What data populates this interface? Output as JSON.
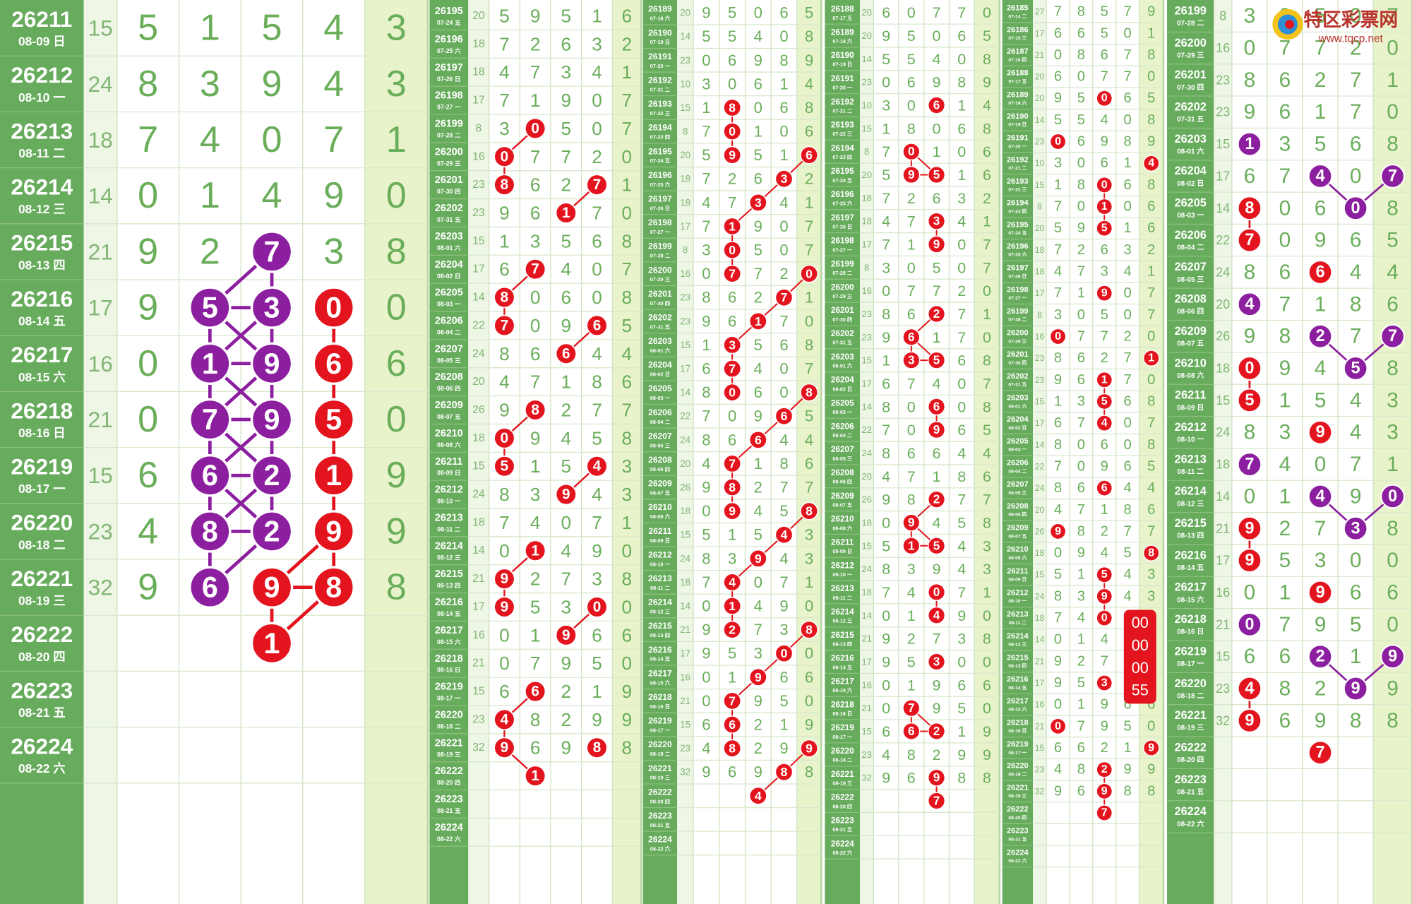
{
  "logo": {
    "title": "特区彩票网",
    "url": "www.tqcp.net"
  },
  "colors": {
    "r": "#e3141d",
    "p": "#8b1f9f"
  },
  "draws": [
    {
      "issue": "26185",
      "date": "07-14 二",
      "sum": 27,
      "digits": [
        7,
        8,
        5,
        7
      ],
      "last": 9
    },
    {
      "issue": "26186",
      "date": "07-15 三",
      "sum": 17,
      "digits": [
        6,
        6,
        5,
        0
      ],
      "last": 1
    },
    {
      "issue": "26187",
      "date": "07-16 四",
      "sum": 21,
      "digits": [
        0,
        8,
        6,
        7
      ],
      "last": 8
    },
    {
      "issue": "26188",
      "date": "07-17 五",
      "sum": 20,
      "digits": [
        6,
        0,
        7,
        7
      ],
      "last": 0
    },
    {
      "issue": "26189",
      "date": "07-18 六",
      "sum": 20,
      "digits": [
        9,
        5,
        0,
        6
      ],
      "last": 5
    },
    {
      "issue": "26190",
      "date": "07-19 日",
      "sum": 14,
      "digits": [
        5,
        5,
        4,
        0
      ],
      "last": 8
    },
    {
      "issue": "26191",
      "date": "07-20 一",
      "sum": 23,
      "digits": [
        0,
        6,
        9,
        8
      ],
      "last": 9
    },
    {
      "issue": "26192",
      "date": "07-21 二",
      "sum": 10,
      "digits": [
        3,
        0,
        6,
        1
      ],
      "last": 4
    },
    {
      "issue": "26193",
      "date": "07-22 三",
      "sum": 15,
      "digits": [
        1,
        8,
        0,
        6
      ],
      "last": 8
    },
    {
      "issue": "26194",
      "date": "07-23 四",
      "sum": 8,
      "digits": [
        7,
        0,
        1,
        0
      ],
      "last": 6
    },
    {
      "issue": "26195",
      "date": "07-24 五",
      "sum": 20,
      "digits": [
        5,
        9,
        5,
        1
      ],
      "last": 6
    },
    {
      "issue": "26196",
      "date": "07-25 六",
      "sum": 18,
      "digits": [
        7,
        2,
        6,
        3
      ],
      "last": 2
    },
    {
      "issue": "26197",
      "date": "07-26 日",
      "sum": 18,
      "digits": [
        4,
        7,
        3,
        4
      ],
      "last": 1
    },
    {
      "issue": "26198",
      "date": "07-27 一",
      "sum": 17,
      "digits": [
        7,
        1,
        9,
        0
      ],
      "last": 7
    },
    {
      "issue": "26199",
      "date": "07-28 二",
      "sum": 8,
      "digits": [
        3,
        0,
        5,
        0
      ],
      "last": 7
    },
    {
      "issue": "26200",
      "date": "07-29 三",
      "sum": 16,
      "digits": [
        0,
        7,
        7,
        2
      ],
      "last": 0
    },
    {
      "issue": "26201",
      "date": "07-30 四",
      "sum": 23,
      "digits": [
        8,
        6,
        2,
        7
      ],
      "last": 1
    },
    {
      "issue": "26202",
      "date": "07-31 五",
      "sum": 23,
      "digits": [
        9,
        6,
        1,
        7
      ],
      "last": 0
    },
    {
      "issue": "26203",
      "date": "08-01 六",
      "sum": 15,
      "digits": [
        1,
        3,
        5,
        6
      ],
      "last": 8
    },
    {
      "issue": "26204",
      "date": "08-02 日",
      "sum": 17,
      "digits": [
        6,
        7,
        4,
        0
      ],
      "last": 7
    },
    {
      "issue": "26205",
      "date": "08-03 一",
      "sum": 14,
      "digits": [
        8,
        0,
        6,
        0
      ],
      "last": 8
    },
    {
      "issue": "26206",
      "date": "08-04 二",
      "sum": 22,
      "digits": [
        7,
        0,
        9,
        6
      ],
      "last": 5
    },
    {
      "issue": "26207",
      "date": "08-05 三",
      "sum": 24,
      "digits": [
        8,
        6,
        6,
        4
      ],
      "last": 4
    },
    {
      "issue": "26208",
      "date": "08-06 四",
      "sum": 20,
      "digits": [
        4,
        7,
        1,
        8
      ],
      "last": 6
    },
    {
      "issue": "26209",
      "date": "08-07 五",
      "sum": 26,
      "digits": [
        9,
        8,
        2,
        7
      ],
      "last": 7
    },
    {
      "issue": "26210",
      "date": "08-08 六",
      "sum": 18,
      "digits": [
        0,
        9,
        4,
        5
      ],
      "last": 8
    },
    {
      "issue": "26211",
      "date": "08-09 日",
      "sum": 15,
      "digits": [
        5,
        1,
        5,
        4
      ],
      "last": 3
    },
    {
      "issue": "26212",
      "date": "08-10 一",
      "sum": 24,
      "digits": [
        8,
        3,
        9,
        4
      ],
      "last": 3
    },
    {
      "issue": "26213",
      "date": "08-11 二",
      "sum": 18,
      "digits": [
        7,
        4,
        0,
        7
      ],
      "last": 1
    },
    {
      "issue": "26214",
      "date": "08-12 三",
      "sum": 14,
      "digits": [
        0,
        1,
        4,
        9
      ],
      "last": 0
    },
    {
      "issue": "26215",
      "date": "08-13 四",
      "sum": 21,
      "digits": [
        9,
        2,
        7,
        3
      ],
      "last": 8
    },
    {
      "issue": "26216",
      "date": "08-14 五",
      "sum": 17,
      "digits": [
        9,
        5,
        3,
        0
      ],
      "last": 0
    },
    {
      "issue": "26217",
      "date": "08-15 六",
      "sum": 16,
      "digits": [
        0,
        1,
        9,
        6
      ],
      "last": 6
    },
    {
      "issue": "26218",
      "date": "08-16 日",
      "sum": 21,
      "digits": [
        0,
        7,
        9,
        5
      ],
      "last": 0
    },
    {
      "issue": "26219",
      "date": "08-17 一",
      "sum": 15,
      "digits": [
        6,
        6,
        2,
        1
      ],
      "last": 9
    },
    {
      "issue": "26220",
      "date": "08-18 二",
      "sum": 23,
      "digits": [
        4,
        8,
        2,
        9
      ],
      "last": 9
    },
    {
      "issue": "26221",
      "date": "08-19 三",
      "sum": 32,
      "digits": [
        9,
        6,
        9,
        8
      ],
      "last": 8
    },
    {
      "issue": "26222",
      "date": "08-20 四"
    },
    {
      "issue": "26223",
      "date": "08-21 五"
    },
    {
      "issue": "26224",
      "date": "08-22 六"
    }
  ],
  "panels": [
    {
      "first_issue": "26211",
      "highlights": [
        [
          "26215",
          2,
          "p"
        ],
        [
          "26216",
          1,
          "p"
        ],
        [
          "26216",
          2,
          "p"
        ],
        [
          "26216",
          3,
          "r"
        ],
        [
          "26217",
          1,
          "p"
        ],
        [
          "26217",
          2,
          "p"
        ],
        [
          "26217",
          3,
          "r"
        ],
        [
          "26218",
          1,
          "p"
        ],
        [
          "26218",
          2,
          "p"
        ],
        [
          "26218",
          3,
          "r"
        ],
        [
          "26219",
          1,
          "p"
        ],
        [
          "26219",
          2,
          "p"
        ],
        [
          "26219",
          3,
          "r"
        ],
        [
          "26220",
          1,
          "p"
        ],
        [
          "26220",
          2,
          "p"
        ],
        [
          "26220",
          3,
          "r"
        ],
        [
          "26221",
          1,
          "p"
        ],
        [
          "26221",
          2,
          "r"
        ],
        [
          "26221",
          3,
          "r"
        ]
      ],
      "predictions": [
        [
          "26222",
          2,
          1,
          "r"
        ]
      ]
    },
    {
      "first_issue": "26195",
      "highlights": [
        [
          "26199",
          1,
          "r"
        ],
        [
          "26200",
          0,
          "r"
        ],
        [
          "26201",
          0,
          "r"
        ],
        [
          "26201",
          3,
          "r"
        ],
        [
          "26202",
          2,
          "r"
        ],
        [
          "26204",
          1,
          "r"
        ],
        [
          "26205",
          0,
          "r"
        ],
        [
          "26206",
          0,
          "r"
        ],
        [
          "26206",
          3,
          "r"
        ],
        [
          "26207",
          2,
          "r"
        ],
        [
          "26209",
          1,
          "r"
        ],
        [
          "26210",
          0,
          "r"
        ],
        [
          "26211",
          0,
          "r"
        ],
        [
          "26211",
          3,
          "r"
        ],
        [
          "26212",
          2,
          "r"
        ],
        [
          "26214",
          1,
          "r"
        ],
        [
          "26215",
          0,
          "r"
        ],
        [
          "26216",
          0,
          "r"
        ],
        [
          "26216",
          3,
          "r"
        ],
        [
          "26217",
          2,
          "r"
        ],
        [
          "26219",
          1,
          "r"
        ],
        [
          "26220",
          0,
          "r"
        ],
        [
          "26221",
          0,
          "r"
        ],
        [
          "26221",
          3,
          "r"
        ]
      ],
      "predictions": [
        [
          "26222",
          1,
          1,
          "r"
        ]
      ]
    },
    {
      "first_issue": "26189",
      "highlights": [
        [
          "26193",
          1,
          "r"
        ],
        [
          "26194",
          1,
          "r"
        ],
        [
          "26195",
          1,
          "r"
        ],
        [
          "26195",
          4,
          "r"
        ],
        [
          "26196",
          3,
          "r"
        ],
        [
          "26197",
          2,
          "r"
        ],
        [
          "26198",
          1,
          "r"
        ],
        [
          "26199",
          1,
          "r"
        ],
        [
          "26200",
          1,
          "r"
        ],
        [
          "26200",
          4,
          "r"
        ],
        [
          "26201",
          3,
          "r"
        ],
        [
          "26202",
          2,
          "r"
        ],
        [
          "26203",
          1,
          "r"
        ],
        [
          "26204",
          1,
          "r"
        ],
        [
          "26205",
          1,
          "r"
        ],
        [
          "26205",
          4,
          "r"
        ],
        [
          "26206",
          3,
          "r"
        ],
        [
          "26207",
          2,
          "r"
        ],
        [
          "26208",
          1,
          "r"
        ],
        [
          "26209",
          1,
          "r"
        ],
        [
          "26210",
          1,
          "r"
        ],
        [
          "26210",
          4,
          "r"
        ],
        [
          "26211",
          3,
          "r"
        ],
        [
          "26212",
          2,
          "r"
        ],
        [
          "26213",
          1,
          "r"
        ],
        [
          "26214",
          1,
          "r"
        ],
        [
          "26215",
          1,
          "r"
        ],
        [
          "26215",
          4,
          "r"
        ],
        [
          "26216",
          3,
          "r"
        ],
        [
          "26217",
          2,
          "r"
        ],
        [
          "26218",
          1,
          "r"
        ],
        [
          "26219",
          1,
          "r"
        ],
        [
          "26220",
          1,
          "r"
        ],
        [
          "26220",
          4,
          "r"
        ],
        [
          "26221",
          3,
          "r"
        ]
      ],
      "predictions": [
        [
          "26222",
          2,
          4,
          "r"
        ]
      ]
    },
    {
      "first_issue": "26188",
      "highlights": [
        [
          "26192",
          2,
          "r"
        ],
        [
          "26194",
          1,
          "r"
        ],
        [
          "26195",
          1,
          "r"
        ],
        [
          "26195",
          2,
          "r"
        ],
        [
          "26197",
          2,
          "r"
        ],
        [
          "26198",
          2,
          "r"
        ],
        [
          "26201",
          2,
          "r"
        ],
        [
          "26202",
          1,
          "r"
        ],
        [
          "26203",
          1,
          "r"
        ],
        [
          "26203",
          2,
          "r"
        ],
        [
          "26205",
          2,
          "r"
        ],
        [
          "26206",
          2,
          "r"
        ],
        [
          "26209",
          2,
          "r"
        ],
        [
          "26210",
          1,
          "r"
        ],
        [
          "26211",
          1,
          "r"
        ],
        [
          "26211",
          2,
          "r"
        ],
        [
          "26213",
          2,
          "r"
        ],
        [
          "26214",
          2,
          "r"
        ],
        [
          "26216",
          2,
          "r"
        ],
        [
          "26218",
          1,
          "r"
        ],
        [
          "26219",
          1,
          "r"
        ],
        [
          "26219",
          2,
          "r"
        ],
        [
          "26221",
          2,
          "r"
        ]
      ],
      "predictions": [
        [
          "26222",
          2,
          7,
          "r"
        ]
      ]
    },
    {
      "first_issue": "26185",
      "highlights": [
        [
          "26189",
          2,
          "r"
        ],
        [
          "26191",
          0,
          "r"
        ],
        [
          "26192",
          4,
          "r"
        ],
        [
          "26193",
          2,
          "r"
        ],
        [
          "26194",
          2,
          "r"
        ],
        [
          "26195",
          2,
          "r"
        ],
        [
          "26198",
          2,
          "r"
        ],
        [
          "26200",
          0,
          "r"
        ],
        [
          "26201",
          4,
          "r"
        ],
        [
          "26202",
          2,
          "r"
        ],
        [
          "26203",
          2,
          "r"
        ],
        [
          "26204",
          2,
          "r"
        ],
        [
          "26207",
          2,
          "r"
        ],
        [
          "26209",
          0,
          "r"
        ],
        [
          "26210",
          4,
          "r"
        ],
        [
          "26211",
          2,
          "r"
        ],
        [
          "26212",
          2,
          "r"
        ],
        [
          "26213",
          2,
          "r"
        ],
        [
          "26216",
          2,
          "r"
        ],
        [
          "26218",
          0,
          "r"
        ],
        [
          "26219",
          4,
          "r"
        ],
        [
          "26220",
          2,
          "r"
        ],
        [
          "26221",
          2,
          "r"
        ]
      ],
      "predictions": [
        [
          "26222",
          2,
          7,
          "r"
        ]
      ],
      "note": [
        "00",
        "00",
        "00",
        "55"
      ]
    },
    {
      "first_issue": "26199",
      "highlights": [
        [
          "26203",
          0,
          "p"
        ],
        [
          "26204",
          2,
          "p"
        ],
        [
          "26204",
          4,
          "p"
        ],
        [
          "26205",
          3,
          "p"
        ],
        [
          "26205",
          0,
          "r"
        ],
        [
          "26206",
          0,
          "r"
        ],
        [
          "26207",
          2,
          "r"
        ],
        [
          "26208",
          0,
          "p"
        ],
        [
          "26209",
          2,
          "p"
        ],
        [
          "26209",
          4,
          "p"
        ],
        [
          "26210",
          3,
          "p"
        ],
        [
          "26210",
          0,
          "r"
        ],
        [
          "26211",
          0,
          "r"
        ],
        [
          "26212",
          2,
          "r"
        ],
        [
          "26213",
          0,
          "p"
        ],
        [
          "26214",
          2,
          "p"
        ],
        [
          "26214",
          4,
          "p"
        ],
        [
          "26215",
          3,
          "p"
        ],
        [
          "26215",
          0,
          "r"
        ],
        [
          "26216",
          0,
          "r"
        ],
        [
          "26217",
          2,
          "r"
        ],
        [
          "26218",
          0,
          "p"
        ],
        [
          "26219",
          2,
          "p"
        ],
        [
          "26219",
          4,
          "p"
        ],
        [
          "26220",
          3,
          "p"
        ],
        [
          "26220",
          0,
          "r"
        ],
        [
          "26221",
          0,
          "r"
        ]
      ],
      "predictions": [
        [
          "26222",
          2,
          7,
          "r"
        ]
      ]
    }
  ]
}
